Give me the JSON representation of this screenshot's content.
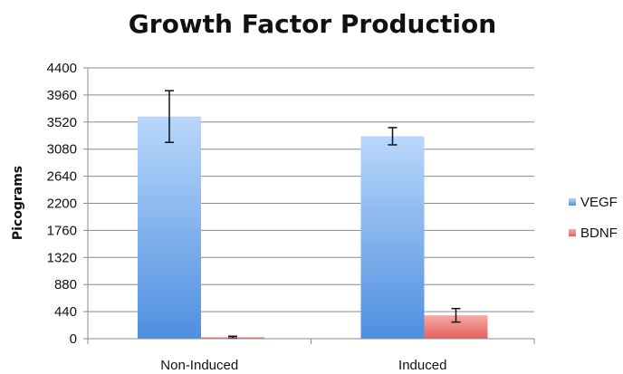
{
  "chart_data": {
    "type": "bar",
    "title": "Growth Factor Production",
    "xlabel": "",
    "ylabel": "Picograms",
    "ylim": [
      0,
      4400
    ],
    "yticks": [
      0,
      440,
      880,
      1320,
      1760,
      2200,
      2640,
      3080,
      3520,
      3960,
      4400
    ],
    "categories": [
      "Non-Induced",
      "Induced"
    ],
    "series": [
      {
        "name": "VEGF",
        "color": "#6aa5ea",
        "values": [
          3610,
          3290
        ],
        "errors": [
          420,
          140
        ]
      },
      {
        "name": "BDNF",
        "color": "#ef7f7b",
        "values": [
          25,
          380
        ],
        "errors": [
          15,
          110
        ]
      }
    ],
    "grid": true,
    "legend_position": "right"
  }
}
